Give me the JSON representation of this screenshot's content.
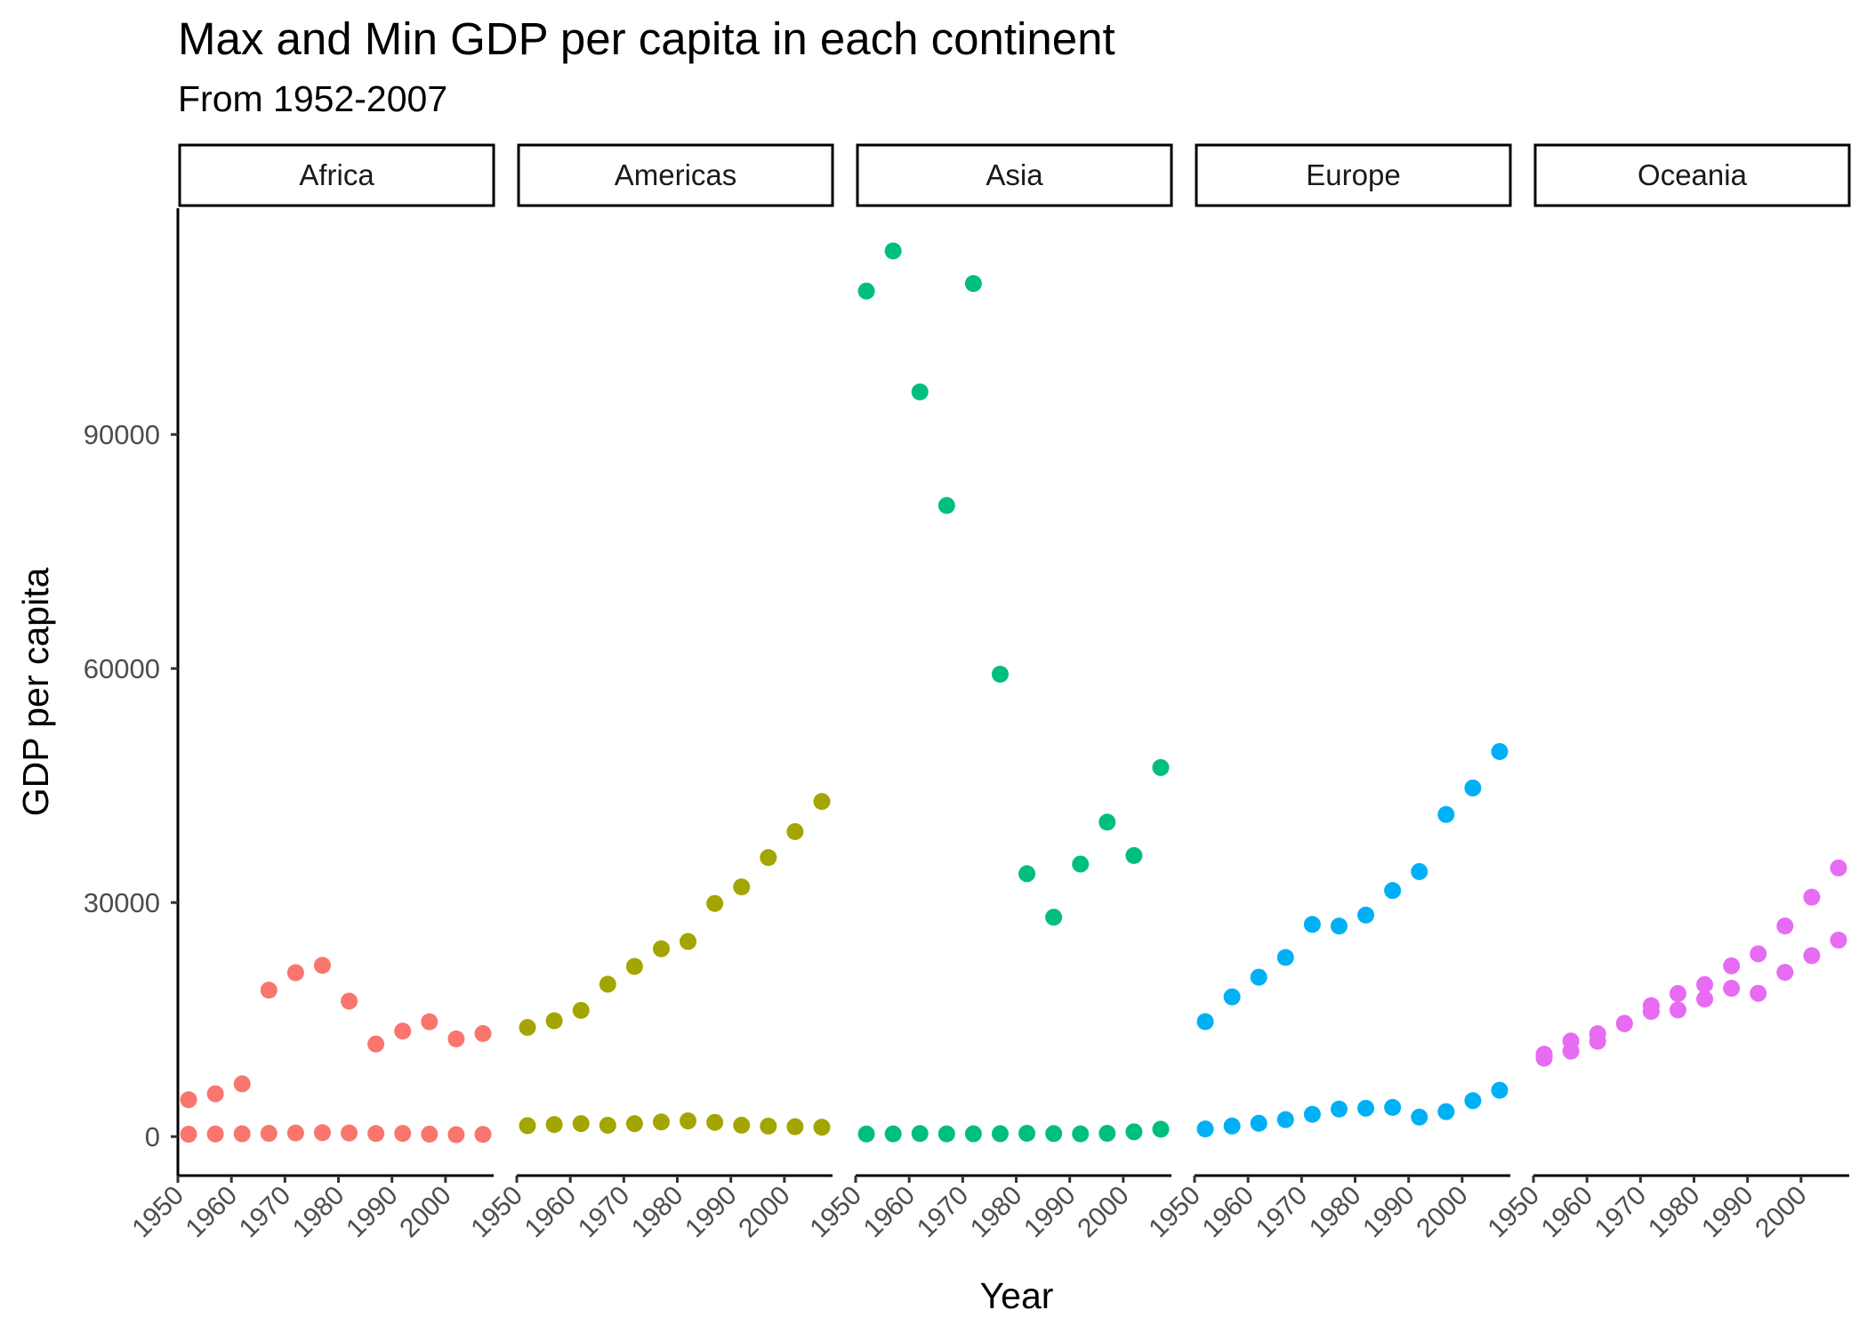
{
  "chart_data": {
    "type": "scatter",
    "title": "Max and Min GDP per capita in each continent",
    "subtitle": "From 1952-2007",
    "xlabel": "Year",
    "ylabel": "GDP per capita",
    "xlim": [
      1950,
      2009
    ],
    "ylim": [
      -5000,
      119000
    ],
    "x_ticks": [
      1950,
      1960,
      1970,
      1980,
      1990,
      2000
    ],
    "y_ticks": [
      0,
      30000,
      60000,
      90000
    ],
    "grid": false,
    "legend": "none",
    "panels": [
      {
        "name": "Africa",
        "color": "#F8766D",
        "points": [
          [
            1952,
            4725
          ],
          [
            1957,
            5487
          ],
          [
            1962,
            6757
          ],
          [
            1967,
            18773
          ],
          [
            1972,
            21011
          ],
          [
            1977,
            21951
          ],
          [
            1982,
            17364
          ],
          [
            1987,
            11864
          ],
          [
            1992,
            13522
          ],
          [
            1997,
            14723
          ],
          [
            2002,
            12522
          ],
          [
            2007,
            13206
          ],
          [
            1952,
            299
          ],
          [
            1957,
            336
          ],
          [
            1962,
            355
          ],
          [
            1967,
            412
          ],
          [
            1972,
            464
          ],
          [
            1977,
            502
          ],
          [
            1982,
            462
          ],
          [
            1987,
            390
          ],
          [
            1992,
            410
          ],
          [
            1997,
            312
          ],
          [
            2002,
            241
          ],
          [
            2007,
            278
          ]
        ]
      },
      {
        "name": "Americas",
        "color": "#A3A500",
        "points": [
          [
            1952,
            13990
          ],
          [
            1957,
            14847
          ],
          [
            1962,
            16173
          ],
          [
            1967,
            19530
          ],
          [
            1972,
            21806
          ],
          [
            1977,
            24072
          ],
          [
            1982,
            25010
          ],
          [
            1987,
            29884
          ],
          [
            1992,
            32004
          ],
          [
            1997,
            35767
          ],
          [
            2002,
            39097
          ],
          [
            2007,
            42952
          ],
          [
            1952,
            1398
          ],
          [
            1957,
            1544
          ],
          [
            1962,
            1666
          ],
          [
            1967,
            1452
          ],
          [
            1972,
            1654
          ],
          [
            1977,
            1874
          ],
          [
            1982,
            2011
          ],
          [
            1987,
            1823
          ],
          [
            1992,
            1456
          ],
          [
            1997,
            1342
          ],
          [
            2002,
            1270
          ],
          [
            2007,
            1202
          ]
        ]
      },
      {
        "name": "Asia",
        "color": "#00BF7D",
        "points": [
          [
            1952,
            108382
          ],
          [
            1957,
            113523
          ],
          [
            1962,
            95458
          ],
          [
            1967,
            80895
          ],
          [
            1972,
            109348
          ],
          [
            1977,
            59265
          ],
          [
            1982,
            33693
          ],
          [
            1987,
            28118
          ],
          [
            1992,
            34932
          ],
          [
            1997,
            40300
          ],
          [
            2002,
            36023
          ],
          [
            2007,
            47307
          ],
          [
            1952,
            331
          ],
          [
            1957,
            350
          ],
          [
            1962,
            388
          ],
          [
            1967,
            349
          ],
          [
            1972,
            357
          ],
          [
            1977,
            371
          ],
          [
            1982,
            424
          ],
          [
            1987,
            385
          ],
          [
            1992,
            347
          ],
          [
            1997,
            415
          ],
          [
            2002,
            611
          ],
          [
            2007,
            944
          ]
        ]
      },
      {
        "name": "Europe",
        "color": "#00B0F6",
        "points": [
          [
            1952,
            14734
          ],
          [
            1957,
            17909
          ],
          [
            1962,
            20431
          ],
          [
            1967,
            22966
          ],
          [
            1972,
            27195
          ],
          [
            1977,
            26982
          ],
          [
            1982,
            28398
          ],
          [
            1987,
            31541
          ],
          [
            1992,
            33965
          ],
          [
            1997,
            41283
          ],
          [
            2002,
            44684
          ],
          [
            2007,
            49357
          ],
          [
            1952,
            973
          ],
          [
            1957,
            1354
          ],
          [
            1962,
            1710
          ],
          [
            1967,
            2173
          ],
          [
            1972,
            2860
          ],
          [
            1977,
            3529
          ],
          [
            1982,
            3631
          ],
          [
            1987,
            3739
          ],
          [
            1992,
            2497
          ],
          [
            1997,
            3193
          ],
          [
            2002,
            4604
          ],
          [
            2007,
            5937
          ]
        ]
      },
      {
        "name": "Oceania",
        "color": "#E76BF3",
        "points": [
          [
            1952,
            10557
          ],
          [
            1957,
            12247
          ],
          [
            1962,
            13176
          ],
          [
            1967,
            14526
          ],
          [
            1972,
            16789
          ],
          [
            1977,
            18334
          ],
          [
            1982,
            19477
          ],
          [
            1987,
            21889
          ],
          [
            1992,
            23425
          ],
          [
            1997,
            26998
          ],
          [
            2002,
            30688
          ],
          [
            2007,
            34435
          ],
          [
            1952,
            10040
          ],
          [
            1957,
            10950
          ],
          [
            1962,
            12217
          ],
          [
            1967,
            14464
          ],
          [
            1972,
            16046
          ],
          [
            1977,
            16234
          ],
          [
            1982,
            17632
          ],
          [
            1987,
            19007
          ],
          [
            1992,
            18363
          ],
          [
            1997,
            21050
          ],
          [
            2002,
            23190
          ],
          [
            2007,
            25185
          ]
        ]
      }
    ]
  }
}
